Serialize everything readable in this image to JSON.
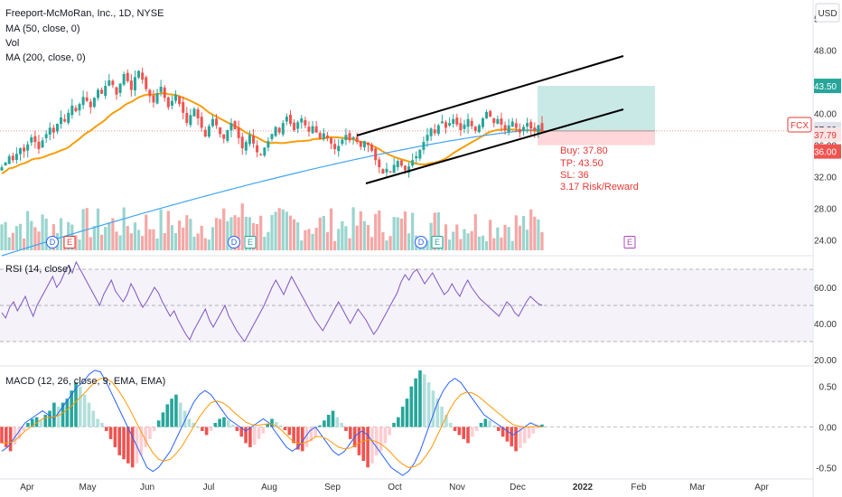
{
  "header": {
    "title": "Freeport-McMoRan, Inc., 1D, NYSE",
    "indicators": [
      "MA (50, close, 0)",
      "Vol",
      "MA (200, close, 0)"
    ],
    "currency": "USD"
  },
  "trade": {
    "buy_label": "Buy: 37.80",
    "tp_label": "TP: 43.50",
    "sl_label": "SL: 36",
    "rr_label": "3.17 Risk/Reward",
    "entry": 37.8,
    "take_profit": 43.5,
    "stop_loss": 36.0
  },
  "price_badges": [
    {
      "text": "43.50",
      "value": 43.5,
      "color": "#26a69a",
      "text_color": "#ffffff"
    },
    {
      "text": "37.80",
      "value": 37.8,
      "color": "#e0e3eb",
      "text_color": "#131722"
    },
    {
      "text": "37.79",
      "value": 37.79,
      "color": "#fce4e4",
      "text_color": "#e53935"
    },
    {
      "text": "36.00",
      "value": 36.0,
      "color": "#ef5350",
      "text_color": "#ffffff"
    }
  ],
  "symbol_tag": "FCX",
  "events": [
    {
      "letter": "D",
      "color": "#2962ff"
    },
    {
      "letter": "E",
      "color": "#e53935"
    },
    {
      "letter": "D",
      "color": "#2962ff"
    },
    {
      "letter": "E",
      "color": "#26a69a"
    },
    {
      "letter": "D",
      "color": "#2962ff"
    },
    {
      "letter": "E",
      "color": "#26a69a"
    },
    {
      "letter": "E",
      "color": "#ab47bc"
    }
  ],
  "panes": {
    "rsi_label": "RSI (14, close)",
    "macd_label": "MACD (12, 26, close, 9, EMA, EMA)"
  },
  "colors": {
    "up": "#26a69a",
    "down": "#ef5350",
    "ma50": "#f59e0b",
    "ma200": "#42a5f5",
    "rsi": "#7e57c2",
    "macd": "#2962ff",
    "signal": "#ff9800"
  },
  "chart_data": [
    {
      "type": "candlestick",
      "title": "Freeport-McMoRan, Inc., 1D, NYSE",
      "y_axis_ticks": [
        "52.00",
        "48.00",
        "44.00",
        "40.00",
        "36.00",
        "32.00",
        "28.00",
        "24.00"
      ],
      "ylim": [
        22,
        53
      ],
      "x_axis_ticks": [
        "Apr",
        "May",
        "Jun",
        "Jul",
        "Aug",
        "Sep",
        "Oct",
        "Nov",
        "Dec",
        "2022",
        "Feb",
        "Mar",
        "Apr"
      ],
      "closes": [
        33.2,
        33.8,
        34.6,
        34.1,
        34.9,
        35.6,
        35.2,
        36.1,
        37.0,
        36.4,
        35.5,
        36.6,
        37.4,
        38.2,
        37.6,
        38.7,
        39.5,
        39.0,
        40.1,
        41.0,
        40.3,
        41.2,
        42.1,
        41.6,
        40.8,
        42.0,
        43.0,
        42.5,
        43.5,
        44.2,
        43.6,
        42.4,
        43.8,
        45.0,
        44.1,
        43.0,
        44.6,
        45.4,
        44.3,
        43.1,
        42.2,
        41.4,
        42.6,
        43.4,
        42.0,
        40.8,
        41.6,
        42.4,
        41.2,
        40.1,
        38.8,
        39.8,
        40.6,
        39.4,
        38.2,
        37.1,
        38.4,
        39.3,
        38.5,
        37.4,
        36.8,
        37.9,
        38.8,
        38.0,
        36.9,
        35.6,
        36.4,
        37.3,
        36.2,
        35.1,
        34.8,
        35.7,
        36.5,
        37.4,
        38.3,
        37.6,
        38.8,
        39.6,
        38.7,
        37.9,
        38.9,
        39.4,
        38.5,
        37.7,
        38.4,
        37.6,
        36.8,
        37.5,
        36.9,
        36.2,
        35.5,
        35.9,
        36.7,
        37.3,
        36.6,
        37.0,
        36.4,
        35.8,
        36.5,
        36.0,
        35.3,
        34.1,
        33.2,
        32.4,
        33.0,
        32.6,
        33.5,
        34.0,
        33.4,
        32.8,
        33.3,
        34.1,
        34.6,
        35.4,
        36.4,
        37.3,
        38.1,
        37.5,
        38.5,
        39.0,
        38.2,
        38.8,
        39.3,
        38.6,
        37.9,
        38.6,
        39.3,
        38.4,
        37.8,
        38.5,
        39.4,
        40.2,
        39.6,
        38.8,
        39.3,
        38.6,
        37.9,
        38.5,
        39.0,
        38.2,
        37.6,
        38.3,
        38.8,
        38.1,
        37.8,
        38.5,
        37.79
      ],
      "ma50_approx": "rises from ~34 to ~41.5 in Jun, eases to ~37 by Sep-Oct, ~38 in Dec",
      "ma200_approx": "rises steadily from ~22 in Apr to ~38 in Dec",
      "channel": {
        "upper": [
          [
            37.0,
            "Sep"
          ],
          [
            47.5,
            "Jan"
          ]
        ],
        "lower": [
          [
            30.0,
            "Sep"
          ],
          [
            40.0,
            "Jan"
          ]
        ]
      }
    },
    {
      "type": "line",
      "title": "RSI (14, close)",
      "y_axis_ticks": [
        "60.00",
        "40.00",
        "20.00"
      ],
      "ylim": [
        17,
        76
      ],
      "bands": [
        70,
        50,
        30
      ],
      "series": [
        {
          "name": "RSI (14, close)",
          "values": [
            46,
            43,
            49,
            52,
            47,
            51,
            55,
            49,
            44,
            50,
            54,
            58,
            62,
            66,
            60,
            63,
            68,
            72,
            68,
            74,
            70,
            66,
            62,
            58,
            54,
            50,
            56,
            60,
            64,
            58,
            55,
            52,
            56,
            62,
            58,
            53,
            49,
            52,
            56,
            60,
            57,
            52,
            48,
            44,
            47,
            42,
            38,
            34,
            31,
            36,
            40,
            44,
            48,
            42,
            38,
            42,
            46,
            50,
            44,
            40,
            36,
            33,
            30,
            34,
            38,
            42,
            46,
            50,
            55,
            60,
            64,
            60,
            56,
            61,
            66,
            62,
            58,
            54,
            50,
            46,
            42,
            39,
            36,
            40,
            44,
            48,
            52,
            48,
            44,
            40,
            44,
            48,
            45,
            42,
            38,
            34,
            37,
            41,
            45,
            49,
            53,
            57,
            63,
            67,
            64,
            68,
            70,
            66,
            62,
            65,
            68,
            64,
            60,
            56,
            58,
            62,
            58,
            55,
            60,
            64,
            60,
            57,
            54,
            52,
            50,
            48,
            46,
            44,
            48,
            52,
            50,
            46,
            44,
            48,
            52,
            55,
            53,
            51,
            50
          ]
        }
      ]
    },
    {
      "type": "bar",
      "title": "MACD (12, 26, close, 9, EMA, EMA)",
      "y_axis_ticks": [
        "0.50",
        "0.00",
        "-0.50"
      ],
      "ylim": [
        -0.62,
        0.72
      ],
      "histogram": [
        -0.2,
        -0.25,
        -0.3,
        -0.22,
        -0.15,
        -0.05,
        0.05,
        0.1,
        0.12,
        0.08,
        0.15,
        0.2,
        0.3,
        0.25,
        0.3,
        0.35,
        0.45,
        0.55,
        0.5,
        0.4,
        0.3,
        0.2,
        0.1,
        0.05,
        -0.05,
        -0.15,
        -0.25,
        -0.35,
        -0.4,
        -0.45,
        -0.5,
        -0.45,
        -0.35,
        -0.25,
        -0.15,
        -0.05,
        0.08,
        0.18,
        0.28,
        0.35,
        0.4,
        0.3,
        0.2,
        0.1,
        0.05,
        0.0,
        -0.05,
        -0.1,
        -0.05,
        0.05,
        0.1,
        0.12,
        0.08,
        0.03,
        -0.05,
        -0.12,
        -0.2,
        -0.25,
        -0.22,
        -0.15,
        -0.08,
        0.04,
        0.1,
        0.06,
        0.02,
        -0.04,
        -0.1,
        -0.2,
        -0.28,
        -0.3,
        -0.25,
        -0.18,
        -0.12,
        0.02,
        0.08,
        0.15,
        0.2,
        0.12,
        0.05,
        -0.05,
        -0.15,
        -0.25,
        -0.35,
        -0.42,
        -0.5,
        -0.45,
        -0.35,
        -0.3,
        -0.2,
        -0.1,
        0.05,
        0.12,
        0.25,
        0.35,
        0.5,
        0.6,
        0.7,
        0.65,
        0.55,
        0.45,
        0.35,
        0.25,
        0.15,
        0.05,
        -0.05,
        -0.1,
        -0.15,
        -0.2,
        -0.12,
        -0.05,
        0.05,
        0.1,
        0.08,
        0.02,
        -0.05,
        -0.12,
        -0.18,
        -0.24,
        -0.3,
        -0.26,
        -0.2,
        -0.14,
        -0.08,
        -0.02,
        0.03
      ],
      "series": [
        {
          "name": "MACD",
          "values": [
            -0.3,
            -0.25,
            -0.15,
            -0.05,
            0.05,
            0.1,
            0.15,
            0.2,
            0.15,
            0.1,
            0.2,
            0.3,
            0.4,
            0.5,
            0.55,
            0.65,
            0.7,
            0.68,
            0.55,
            0.4,
            0.25,
            0.1,
            -0.05,
            -0.2,
            -0.35,
            -0.5,
            -0.55,
            -0.5,
            -0.4,
            -0.3,
            -0.15,
            0.0,
            0.15,
            0.3,
            0.4,
            0.45,
            0.4,
            0.3,
            0.2,
            0.1,
            0.05,
            0.0,
            -0.05,
            0.0,
            0.05,
            0.1,
            0.05,
            -0.05,
            -0.15,
            -0.25,
            -0.3,
            -0.25,
            -0.15,
            -0.05,
            0.0,
            -0.1,
            -0.2,
            -0.3,
            -0.35,
            -0.3,
            -0.2,
            -0.1,
            -0.05,
            -0.1,
            -0.2,
            -0.3,
            -0.4,
            -0.5,
            -0.55,
            -0.6,
            -0.55,
            -0.45,
            -0.3,
            -0.1,
            0.1,
            0.3,
            0.45,
            0.55,
            0.6,
            0.55,
            0.45,
            0.35,
            0.25,
            0.15,
            0.1,
            0.05,
            0.0,
            -0.05,
            -0.1,
            -0.05,
            0.0,
            0.05,
            0.02,
            0.0
          ]
        },
        {
          "name": "Signal",
          "values": [
            -0.2,
            -0.2,
            -0.18,
            -0.12,
            -0.05,
            0.0,
            0.05,
            0.1,
            0.12,
            0.12,
            0.15,
            0.2,
            0.26,
            0.33,
            0.4,
            0.48,
            0.55,
            0.6,
            0.6,
            0.55,
            0.46,
            0.35,
            0.22,
            0.08,
            -0.06,
            -0.2,
            -0.32,
            -0.4,
            -0.42,
            -0.4,
            -0.33,
            -0.24,
            -0.12,
            0.0,
            0.12,
            0.22,
            0.3,
            0.32,
            0.3,
            0.25,
            0.18,
            0.12,
            0.06,
            0.03,
            0.02,
            0.03,
            0.04,
            0.02,
            -0.03,
            -0.1,
            -0.17,
            -0.2,
            -0.2,
            -0.17,
            -0.12,
            -0.12,
            -0.15,
            -0.2,
            -0.25,
            -0.27,
            -0.26,
            -0.22,
            -0.18,
            -0.16,
            -0.17,
            -0.2,
            -0.25,
            -0.32,
            -0.4,
            -0.46,
            -0.5,
            -0.49,
            -0.45,
            -0.36,
            -0.25,
            -0.1,
            0.05,
            0.2,
            0.32,
            0.4,
            0.43,
            0.42,
            0.38,
            0.32,
            0.26,
            0.2,
            0.14,
            0.08,
            0.03,
            0.01,
            0.0,
            0.0,
            0.01,
            0.0
          ]
        }
      ]
    }
  ]
}
